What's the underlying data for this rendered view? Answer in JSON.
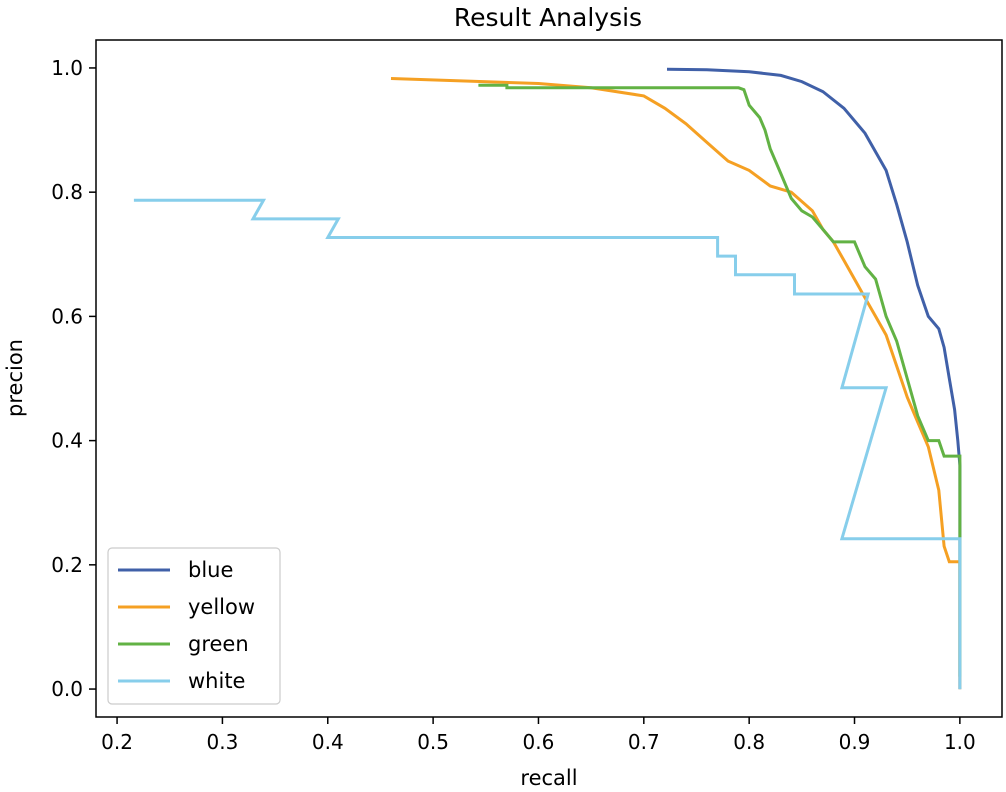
{
  "chart_data": {
    "type": "line",
    "title": "Result Analysis",
    "xlabel": "recall",
    "ylabel": "precion",
    "xlim": [
      0.18,
      1.04
    ],
    "ylim": [
      -0.045,
      1.045
    ],
    "xticks": [
      0.2,
      0.3,
      0.4,
      0.5,
      0.6,
      0.7,
      0.8,
      0.9,
      1.0
    ],
    "xtick_labels": [
      "0.2",
      "0.3",
      "0.4",
      "0.5",
      "0.6",
      "0.7",
      "0.8",
      "0.9",
      "1.0"
    ],
    "yticks": [
      0.0,
      0.2,
      0.4,
      0.6,
      0.8,
      1.0
    ],
    "ytick_labels": [
      "0.0",
      "0.2",
      "0.4",
      "0.6",
      "0.8",
      "1.0"
    ],
    "grid": false,
    "legend_position": "lower-left",
    "series": [
      {
        "name": "blue",
        "color": "#4060a8",
        "points": [
          [
            0.722,
            0.998
          ],
          [
            0.76,
            0.997
          ],
          [
            0.8,
            0.994
          ],
          [
            0.83,
            0.988
          ],
          [
            0.85,
            0.978
          ],
          [
            0.87,
            0.962
          ],
          [
            0.89,
            0.935
          ],
          [
            0.91,
            0.895
          ],
          [
            0.93,
            0.835
          ],
          [
            0.94,
            0.78
          ],
          [
            0.95,
            0.72
          ],
          [
            0.96,
            0.65
          ],
          [
            0.97,
            0.6
          ],
          [
            0.98,
            0.58
          ],
          [
            0.985,
            0.55
          ],
          [
            0.99,
            0.5
          ],
          [
            0.995,
            0.45
          ],
          [
            0.998,
            0.4
          ],
          [
            1.0,
            0.36
          ],
          [
            1.0,
            0.0
          ]
        ]
      },
      {
        "name": "yellow",
        "color": "#f5a023",
        "points": [
          [
            0.46,
            0.983
          ],
          [
            0.6,
            0.975
          ],
          [
            0.65,
            0.968
          ],
          [
            0.7,
            0.955
          ],
          [
            0.72,
            0.935
          ],
          [
            0.74,
            0.91
          ],
          [
            0.76,
            0.88
          ],
          [
            0.78,
            0.85
          ],
          [
            0.8,
            0.835
          ],
          [
            0.82,
            0.81
          ],
          [
            0.84,
            0.8
          ],
          [
            0.86,
            0.77
          ],
          [
            0.87,
            0.74
          ],
          [
            0.88,
            0.72
          ],
          [
            0.89,
            0.69
          ],
          [
            0.9,
            0.66
          ],
          [
            0.91,
            0.63
          ],
          [
            0.92,
            0.6
          ],
          [
            0.93,
            0.57
          ],
          [
            0.94,
            0.52
          ],
          [
            0.95,
            0.47
          ],
          [
            0.96,
            0.43
          ],
          [
            0.97,
            0.39
          ],
          [
            0.98,
            0.32
          ],
          [
            0.985,
            0.23
          ],
          [
            0.99,
            0.205
          ],
          [
            1.0,
            0.205
          ],
          [
            1.0,
            0.0
          ]
        ]
      },
      {
        "name": "green",
        "color": "#62b244",
        "points": [
          [
            0.543,
            0.972
          ],
          [
            0.57,
            0.972
          ],
          [
            0.57,
            0.968
          ],
          [
            0.79,
            0.968
          ],
          [
            0.795,
            0.965
          ],
          [
            0.8,
            0.94
          ],
          [
            0.81,
            0.92
          ],
          [
            0.815,
            0.9
          ],
          [
            0.82,
            0.87
          ],
          [
            0.83,
            0.83
          ],
          [
            0.84,
            0.79
          ],
          [
            0.85,
            0.77
          ],
          [
            0.86,
            0.76
          ],
          [
            0.87,
            0.74
          ],
          [
            0.88,
            0.72
          ],
          [
            0.9,
            0.72
          ],
          [
            0.91,
            0.68
          ],
          [
            0.92,
            0.66
          ],
          [
            0.93,
            0.6
          ],
          [
            0.94,
            0.56
          ],
          [
            0.95,
            0.5
          ],
          [
            0.96,
            0.44
          ],
          [
            0.97,
            0.4
          ],
          [
            0.98,
            0.4
          ],
          [
            0.985,
            0.375
          ],
          [
            1.0,
            0.375
          ],
          [
            1.0,
            0.25
          ],
          [
            1.0,
            0.02
          ]
        ]
      },
      {
        "name": "white",
        "color": "#87ceeb",
        "points": [
          [
            0.216,
            0.787
          ],
          [
            0.339,
            0.787
          ],
          [
            0.329,
            0.757
          ],
          [
            0.41,
            0.757
          ],
          [
            0.4,
            0.727
          ],
          [
            0.722,
            0.727
          ],
          [
            0.77,
            0.727
          ],
          [
            0.77,
            0.697
          ],
          [
            0.787,
            0.697
          ],
          [
            0.787,
            0.667
          ],
          [
            0.843,
            0.667
          ],
          [
            0.843,
            0.636
          ],
          [
            0.913,
            0.636
          ],
          [
            0.888,
            0.485
          ],
          [
            0.93,
            0.485
          ],
          [
            0.888,
            0.242
          ],
          [
            1.0,
            0.242
          ],
          [
            1.0,
            0.0
          ]
        ]
      }
    ]
  }
}
